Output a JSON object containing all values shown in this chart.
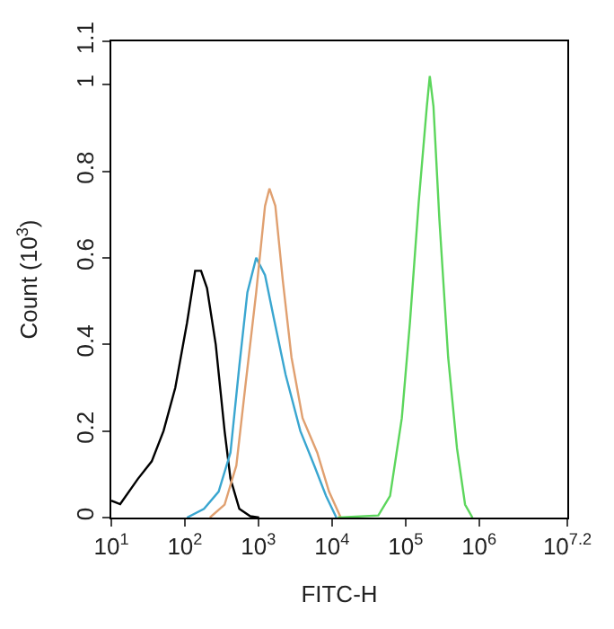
{
  "chart_data": {
    "type": "line",
    "xlabel": "FITC-H",
    "ylabel": "Count (10$^{3}$)",
    "log": "x",
    "marker": "none",
    "line_style": "solid",
    "xlim": [
      10,
      15848932
    ],
    "ylim": [
      0,
      1.1
    ],
    "xticks": [
      {
        "value": 10,
        "label": "10$^{1}$"
      },
      {
        "value": 100,
        "label": "10$^{2}$"
      },
      {
        "value": 1000,
        "label": "10$^{3}$"
      },
      {
        "value": 10000,
        "label": "10$^{4}$"
      },
      {
        "value": 100000,
        "label": "10$^{5}$"
      },
      {
        "value": 1000000,
        "label": "10$^{6}$"
      },
      {
        "value": 15848932,
        "label": "10$^{7.2}$"
      }
    ],
    "yticks": [
      0,
      0.2,
      0.4,
      0.6,
      0.8,
      1,
      1.1
    ],
    "series": [
      {
        "color": "#000000",
        "x": [
          10,
          13.2,
          22.9,
          35.5,
          51.3,
          74.1,
          107,
          138,
          166,
          200,
          263,
          347,
          417,
          550,
          776,
          1023
        ],
        "values": [
          0.039,
          0.031,
          0.089,
          0.13,
          0.2,
          0.3,
          0.45,
          0.57,
          0.57,
          0.53,
          0.4,
          0.2,
          0.09,
          0.02,
          0.003,
          0
        ]
      },
      {
        "color": "#3aa6d0",
        "x": [
          107,
          182,
          288,
          417,
          550,
          708,
          933,
          1230,
          1622,
          2344,
          3715,
          5754,
          8318,
          11482
        ],
        "values": [
          0,
          0.02,
          0.06,
          0.15,
          0.35,
          0.52,
          0.6,
          0.56,
          0.46,
          0.33,
          0.2,
          0.12,
          0.05,
          0
        ]
      },
      {
        "color": "#e0a070",
        "x": [
          219,
          347,
          501,
          661,
          933,
          1230,
          1413,
          1698,
          2138,
          2818,
          3981,
          6310,
          9120,
          13183
        ],
        "values": [
          0,
          0.03,
          0.12,
          0.3,
          0.52,
          0.72,
          0.76,
          0.72,
          0.55,
          0.37,
          0.23,
          0.15,
          0.06,
          0
        ]
      },
      {
        "color": "#5cd65c",
        "x": [
          12023,
          42658,
          61660,
          89125,
          114815,
          151356,
          194984,
          213796,
          239883,
          288403,
          380189,
          501187,
          645654,
          812831
        ],
        "values": [
          0,
          0.005,
          0.05,
          0.23,
          0.45,
          0.73,
          0.95,
          1.02,
          0.95,
          0.69,
          0.37,
          0.16,
          0.03,
          0
        ]
      }
    ]
  }
}
